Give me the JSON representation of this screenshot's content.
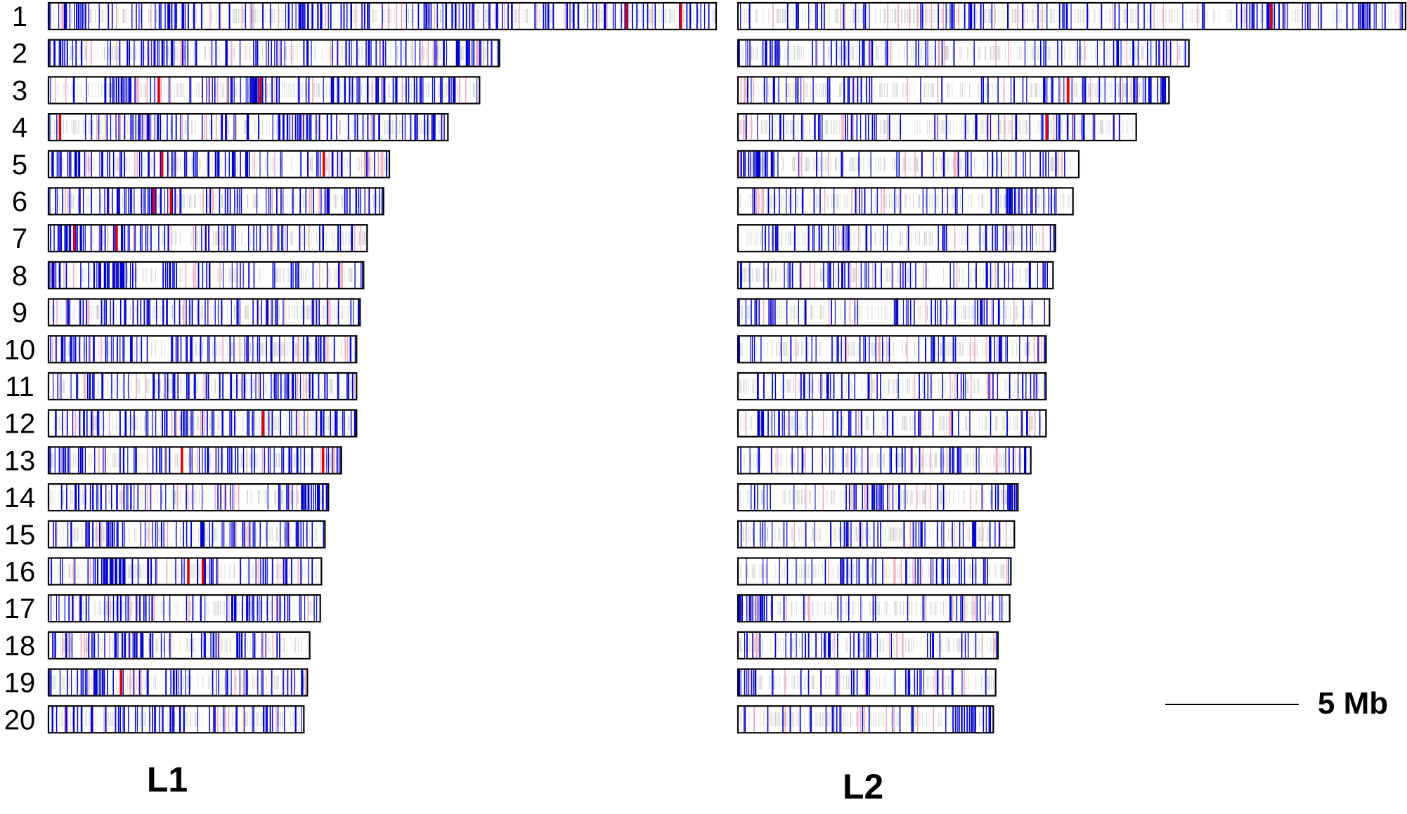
{
  "colors": {
    "outline": "#000000",
    "strong": "#0000cc",
    "weak": "#f3a3b6",
    "highlight": "#dd0000",
    "background_marks": "#c8c8c8"
  },
  "panels": [
    {
      "label": "L1",
      "chromosomes": [
        {
          "num": "1",
          "length": 57
        },
        {
          "num": "2",
          "length": 38.5
        },
        {
          "num": "3",
          "length": 36.8
        },
        {
          "num": "4",
          "length": 34.1
        },
        {
          "num": "5",
          "length": 29.1
        },
        {
          "num": "6",
          "length": 28.6
        },
        {
          "num": "7",
          "length": 27.2
        },
        {
          "num": "8",
          "length": 26.9
        },
        {
          "num": "9",
          "length": 26.6
        },
        {
          "num": "10",
          "length": 26.3
        },
        {
          "num": "11",
          "length": 26.3
        },
        {
          "num": "12",
          "length": 26.3
        },
        {
          "num": "13",
          "length": 25.0
        },
        {
          "num": "14",
          "length": 23.9
        },
        {
          "num": "15",
          "length": 23.6
        },
        {
          "num": "16",
          "length": 23.3
        },
        {
          "num": "17",
          "length": 23.2
        },
        {
          "num": "18",
          "length": 22.3
        },
        {
          "num": "19",
          "length": 22.1
        },
        {
          "num": "20",
          "length": 21.8
        }
      ]
    },
    {
      "label": "L2",
      "chromosomes": [
        {
          "num": "1",
          "length": 57
        },
        {
          "num": "2",
          "length": 38.5
        },
        {
          "num": "3",
          "length": 36.8
        },
        {
          "num": "4",
          "length": 34.0
        },
        {
          "num": "5",
          "length": 29.1
        },
        {
          "num": "6",
          "length": 28.6
        },
        {
          "num": "7",
          "length": 27.1
        },
        {
          "num": "8",
          "length": 26.9
        },
        {
          "num": "9",
          "length": 26.6
        },
        {
          "num": "10",
          "length": 26.3
        },
        {
          "num": "11",
          "length": 26.3
        },
        {
          "num": "12",
          "length": 26.3
        },
        {
          "num": "13",
          "length": 25.0
        },
        {
          "num": "14",
          "length": 23.9
        },
        {
          "num": "15",
          "length": 23.6
        },
        {
          "num": "16",
          "length": 23.3
        },
        {
          "num": "17",
          "length": 23.2
        },
        {
          "num": "18",
          "length": 22.2
        },
        {
          "num": "19",
          "length": 22.0
        },
        {
          "num": "20",
          "length": 21.8
        }
      ]
    }
  ],
  "scale_bar": {
    "label": "5 Mb",
    "length": 5
  }
}
